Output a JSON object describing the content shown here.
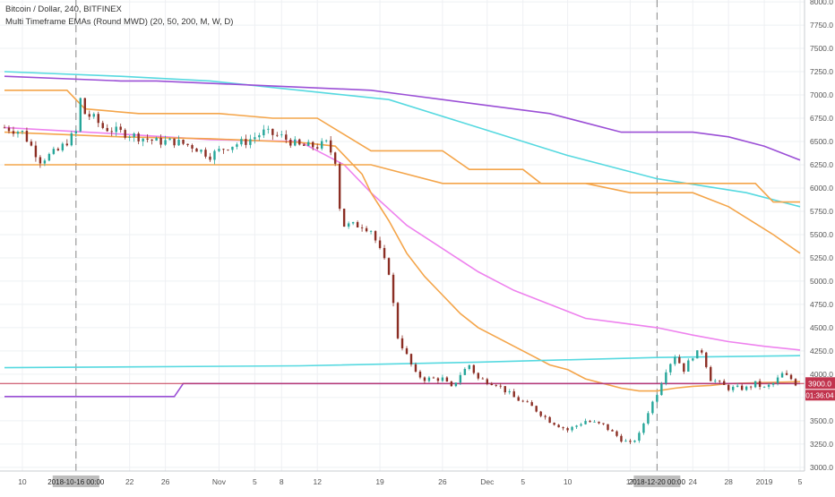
{
  "header": {
    "symbol_line": "Bitcoin / Dollar, 240, BITFINEX",
    "indicator_line": "Multi Timeframe EMAs (Round MWD) (20, 50, 200, M, W, D)"
  },
  "chart_data": {
    "type": "line",
    "title": "Bitcoin / Dollar, 240, BITFINEX",
    "xlabel": "",
    "ylabel": "",
    "ylim": [
      3000,
      8000
    ],
    "y_ticks": [
      "8000.0",
      "7750.0",
      "7500.0",
      "7250.0",
      "7000.0",
      "6750.0",
      "6500.0",
      "6250.0",
      "6000.0",
      "5750.0",
      "5500.0",
      "5250.0",
      "5000.0",
      "4750.0",
      "4500.0",
      "4250.0",
      "4000.0",
      "3750.0",
      "3500.0",
      "3250.0",
      "3000.0"
    ],
    "x_ticks": [
      "10",
      "2018-10-16  00:00",
      "22",
      "26",
      "Nov",
      "5",
      "8",
      "12",
      "19",
      "26",
      "Dec",
      "5",
      "10",
      "17",
      "2018-12-20  00:00",
      "24",
      "28",
      "2019",
      "5"
    ],
    "x_tick_days": [
      9,
      15,
      21,
      25,
      31,
      35,
      38,
      42,
      49,
      56,
      61,
      65,
      70,
      77,
      80,
      84,
      88,
      92,
      96
    ],
    "highlight_ticks": [
      "2018-10-16  00:00",
      "2018-12-20  00:00"
    ],
    "current_price_label": "3900.0",
    "countdown_label": "01:36:04",
    "colors": {
      "price_up": "#26a69a",
      "price_down": "#8b2e24",
      "ema_d20": "#ee82ee",
      "ema_d50": "#f4a54a",
      "ema_d200": "#56d9e0",
      "ema_w": "#f4a54a",
      "ema_m": "#9b4fd6",
      "price_line": "#c2344e",
      "grid": "#eef0f3"
    },
    "price_series": {
      "name": "Bitcoin / Dollar",
      "days": [
        7,
        9,
        11,
        13,
        15,
        15.5,
        16,
        17,
        18,
        20,
        22,
        24,
        26,
        28,
        30,
        32,
        34,
        36,
        38,
        40,
        42,
        43,
        44,
        44.5,
        45,
        46,
        47,
        48,
        50,
        51,
        52,
        53,
        54,
        56,
        57,
        58,
        59,
        60,
        62,
        64,
        66,
        68,
        70,
        72,
        74,
        76,
        77,
        78,
        79,
        80,
        81,
        82,
        83,
        84,
        85,
        86,
        87,
        88,
        90,
        91,
        92,
        93,
        94,
        95,
        95.5
      ],
      "values": [
        6650,
        6600,
        6300,
        6400,
        6600,
        6950,
        6800,
        6750,
        6650,
        6600,
        6550,
        6500,
        6500,
        6450,
        6350,
        6450,
        6500,
        6600,
        6550,
        6450,
        6450,
        6480,
        6300,
        5800,
        5600,
        5600,
        5600,
        5550,
        5100,
        4400,
        4200,
        4000,
        3950,
        3950,
        3850,
        4000,
        4100,
        3950,
        3900,
        3750,
        3650,
        3500,
        3400,
        3500,
        3450,
        3300,
        3250,
        3350,
        3600,
        3800,
        4050,
        4200,
        4050,
        4200,
        4250,
        3950,
        3900,
        3850,
        3850,
        3900,
        3850,
        3900,
        4000,
        3950,
        3900
      ]
    },
    "series": [
      {
        "days": [
          7,
          20,
          30,
          40,
          45,
          48,
          52,
          56,
          60,
          64,
          68,
          72,
          76,
          80,
          84,
          88,
          92,
          96
        ],
        "values": [
          6650,
          6580,
          6520,
          6500,
          6250,
          5950,
          5600,
          5350,
          5100,
          4900,
          4750,
          4600,
          4550,
          4500,
          4420,
          4350,
          4300,
          4260
        ]
      },
      {
        "days": [
          7,
          20,
          30,
          40,
          42,
          44,
          45,
          46,
          47,
          48,
          50,
          52,
          54,
          56,
          58,
          60,
          62,
          64,
          66,
          68,
          70,
          72,
          74,
          76,
          78,
          80,
          82,
          84,
          86,
          88,
          92,
          96
        ],
        "values": [
          6600,
          6550,
          6530,
          6490,
          6470,
          6450,
          6350,
          6250,
          6150,
          5950,
          5650,
          5300,
          5050,
          4850,
          4650,
          4500,
          4400,
          4300,
          4200,
          4100,
          4050,
          3950,
          3900,
          3850,
          3820,
          3820,
          3850,
          3870,
          3880,
          3900,
          3910,
          3920
        ]
      },
      {
        "days": [
          7,
          20,
          30,
          40,
          50,
          60,
          70,
          80,
          90,
          96
        ],
        "values": [
          7250,
          7200,
          7150,
          7050,
          6950,
          6650,
          6350,
          6100,
          5950,
          5800
        ]
      },
      {
        "days": [
          7,
          14,
          16,
          22,
          31,
          37,
          42,
          48,
          56,
          59,
          65,
          67,
          72,
          77,
          84,
          88,
          93,
          96
        ],
        "values": [
          7050,
          7050,
          6850,
          6800,
          6800,
          6750,
          6750,
          6400,
          6400,
          6200,
          6200,
          6050,
          6050,
          5950,
          5950,
          5800,
          5500,
          5300
        ]
      },
      {
        "days": [
          7,
          31,
          48,
          56,
          72,
          91,
          93,
          96
        ],
        "values": [
          6250,
          6250,
          6250,
          6050,
          6050,
          6050,
          5850,
          5850
        ]
      },
      {
        "days": [
          7,
          20,
          24,
          48,
          52,
          56,
          60,
          68,
          72,
          76,
          84,
          88,
          92,
          96
        ],
        "values": [
          7200,
          7150,
          7150,
          7050,
          7000,
          6950,
          6900,
          6800,
          6700,
          6600,
          6600,
          6550,
          6450,
          6300
        ]
      },
      {
        "days": [
          7,
          40,
          60,
          80,
          96
        ],
        "values": [
          4070,
          4090,
          4130,
          4180,
          4200
        ]
      },
      {
        "days": [
          7,
          26,
          27,
          96
        ],
        "values": [
          3760,
          3760,
          3900,
          3900
        ]
      }
    ]
  }
}
